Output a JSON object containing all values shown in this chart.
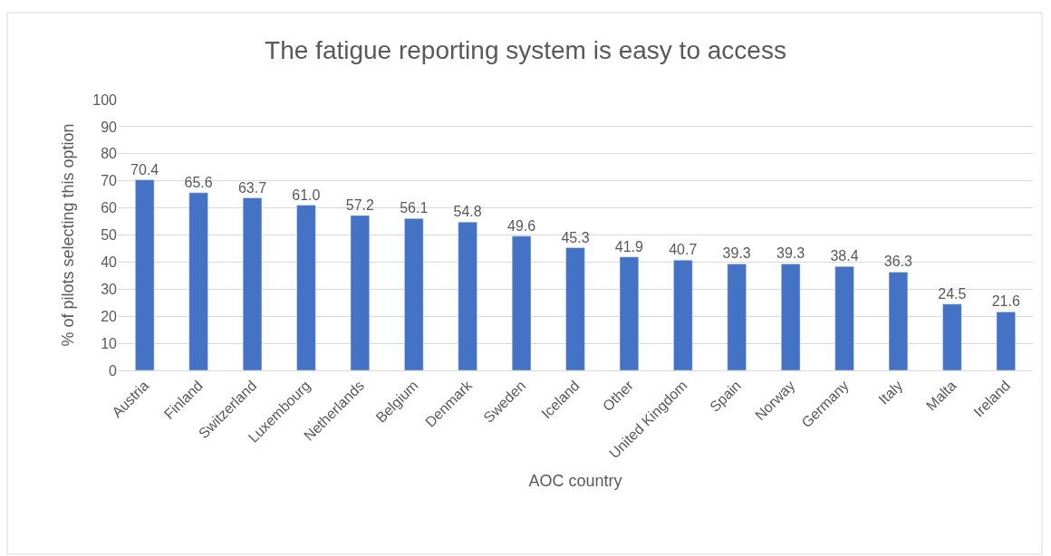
{
  "chart_data": {
    "type": "bar",
    "title": "The fatigue reporting system is easy to access",
    "xlabel": "AOC country",
    "ylabel": "% of pilots selecting this option",
    "categories": [
      "Austria",
      "Finland",
      "Switzerland",
      "Luxembourg",
      "Netherlands",
      "Belgium",
      "Denmark",
      "Sweden",
      "Iceland",
      "Other",
      "United Kingdom",
      "Spain",
      "Norway",
      "Germany",
      "Italy",
      "Malta",
      "Ireland"
    ],
    "values": [
      70.4,
      65.6,
      63.7,
      61.0,
      57.2,
      56.1,
      54.8,
      49.6,
      45.3,
      41.9,
      40.7,
      39.3,
      39.3,
      38.4,
      36.3,
      24.5,
      21.6
    ],
    "value_labels": [
      "70.4",
      "65.6",
      "63.7",
      "61.0",
      "57.2",
      "56.1",
      "54.8",
      "49.6",
      "45.3",
      "41.9",
      "40.7",
      "39.3",
      "39.3",
      "38.4",
      "36.3",
      "24.5",
      "21.6"
    ],
    "color": "#4472c4",
    "ylim": [
      0,
      100
    ],
    "yticks": [
      0,
      10,
      20,
      30,
      40,
      50,
      60,
      70,
      80,
      90,
      100
    ],
    "grid": "y"
  }
}
